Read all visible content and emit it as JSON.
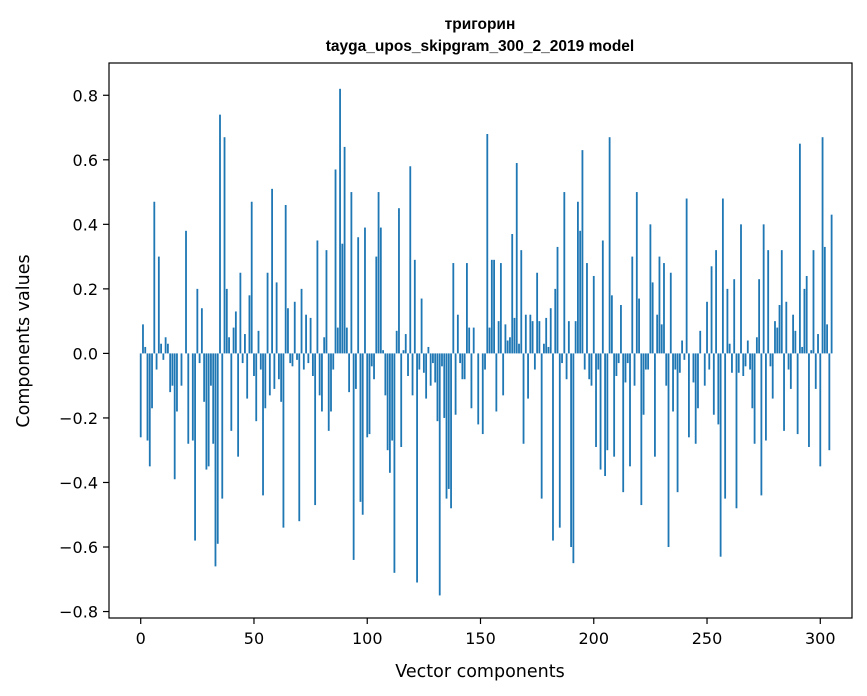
{
  "chart_data": {
    "type": "bar",
    "title": "тригорин",
    "subtitle": "tayga_upos_skipgram_300_2_2019 model",
    "xlabel": "Vector components",
    "ylabel": "Components values",
    "xlim": [
      -14,
      314
    ],
    "ylim": [
      -0.82,
      0.9
    ],
    "xticks": [
      0,
      50,
      100,
      150,
      200,
      250,
      300
    ],
    "yticks": [
      -0.8,
      -0.6,
      -0.4,
      -0.2,
      0.0,
      0.2,
      0.4,
      0.6,
      0.8
    ],
    "ytick_labels": [
      "−0.8",
      "−0.6",
      "−0.4",
      "−0.2",
      "0.0",
      "0.2",
      "0.4",
      "0.6",
      "0.8"
    ],
    "grid": false,
    "bar_color": "#1f77b4",
    "values": [
      -0.26,
      0.09,
      0.02,
      -0.27,
      -0.35,
      -0.17,
      0.47,
      -0.05,
      0.3,
      0.03,
      -0.02,
      0.05,
      0.03,
      -0.12,
      -0.1,
      -0.39,
      -0.18,
      0.0,
      -0.1,
      0.0,
      0.38,
      -0.28,
      0.0,
      -0.27,
      -0.58,
      0.2,
      -0.03,
      0.14,
      -0.15,
      -0.36,
      -0.35,
      -0.1,
      -0.28,
      -0.66,
      -0.59,
      0.74,
      -0.45,
      0.67,
      0.2,
      0.05,
      -0.24,
      0.08,
      0.13,
      -0.32,
      0.25,
      -0.03,
      0.06,
      -0.14,
      0.18,
      0.47,
      -0.07,
      -0.21,
      0.07,
      -0.05,
      -0.44,
      -0.17,
      0.25,
      -0.13,
      0.51,
      -0.11,
      0.22,
      -0.08,
      -0.15,
      -0.54,
      0.46,
      0.14,
      -0.03,
      -0.04,
      0.16,
      -0.02,
      -0.52,
      0.2,
      -0.05,
      0.12,
      -0.03,
      0.11,
      -0.07,
      -0.47,
      0.35,
      -0.13,
      -0.18,
      0.05,
      0.32,
      -0.24,
      -0.18,
      -0.05,
      0.57,
      0.08,
      0.82,
      0.34,
      0.64,
      0.08,
      -0.12,
      0.5,
      -0.64,
      -0.11,
      0.36,
      -0.46,
      -0.5,
      0.39,
      -0.26,
      -0.25,
      -0.04,
      -0.08,
      0.3,
      0.5,
      0.39,
      0.01,
      -0.13,
      -0.3,
      -0.37,
      -0.27,
      -0.68,
      0.07,
      0.45,
      -0.29,
      0.01,
      0.06,
      -0.07,
      0.58,
      -0.13,
      0.29,
      -0.71,
      -0.05,
      0.17,
      -0.06,
      -0.14,
      0.02,
      -0.1,
      -0.03,
      -0.09,
      -0.21,
      -0.75,
      -0.04,
      -0.2,
      -0.45,
      -0.42,
      -0.48,
      0.28,
      -0.19,
      0.12,
      -0.03,
      -0.08,
      -0.08,
      0.28,
      0.08,
      -0.17,
      0.08,
      0.0,
      -0.22,
      0.0,
      -0.25,
      -0.05,
      0.68,
      0.08,
      0.29,
      0.29,
      -0.18,
      0.1,
      0.28,
      -0.13,
      0.09,
      0.04,
      0.05,
      0.37,
      0.11,
      0.59,
      0.03,
      0.32,
      -0.28,
      0.12,
      -0.14,
      0.12,
      0.1,
      -0.05,
      0.25,
      0.1,
      -0.45,
      0.03,
      0.11,
      0.02,
      0.14,
      -0.58,
      0.2,
      0.33,
      -0.54,
      -0.03,
      0.5,
      -0.08,
      0.1,
      -0.6,
      -0.65,
      0.1,
      0.47,
      0.38,
      0.63,
      -0.05,
      0.28,
      -0.08,
      -0.1,
      0.24,
      -0.29,
      -0.05,
      -0.36,
      0.35,
      -0.38,
      -0.3,
      0.67,
      0.18,
      -0.32,
      -0.07,
      -0.03,
      0.15,
      -0.43,
      -0.09,
      -0.03,
      -0.35,
      0.3,
      -0.1,
      0.5,
      0.17,
      -0.47,
      -0.19,
      -0.05,
      -0.05,
      0.4,
      0.22,
      -0.32,
      0.12,
      0.3,
      0.09,
      0.28,
      -0.1,
      -0.6,
      0.25,
      -0.18,
      -0.05,
      -0.43,
      -0.06,
      0.04,
      -0.02,
      0.48,
      -0.26,
      0.0,
      -0.09,
      -0.28,
      -0.17,
      0.07,
      0.0,
      -0.1,
      0.16,
      -0.05,
      0.27,
      -0.19,
      0.32,
      -0.22,
      -0.63,
      0.48,
      -0.45,
      0.2,
      0.03,
      -0.06,
      0.23,
      -0.48,
      -0.06,
      0.4,
      -0.07,
      -0.04,
      0.04,
      -0.05,
      -0.17,
      -0.28,
      0.05,
      0.23,
      -0.44,
      0.4,
      -0.27,
      0.32,
      -0.04,
      -0.14,
      0.1,
      0.08,
      0.15,
      0.32,
      -0.24,
      0.16,
      -0.05,
      -0.11,
      0.12,
      0.07,
      -0.25,
      0.65,
      0.02,
      0.2,
      0.24,
      -0.29,
      0.01,
      0.32,
      -0.11,
      0.06,
      -0.35,
      0.67,
      0.33,
      0.09,
      -0.3,
      0.43
    ]
  }
}
